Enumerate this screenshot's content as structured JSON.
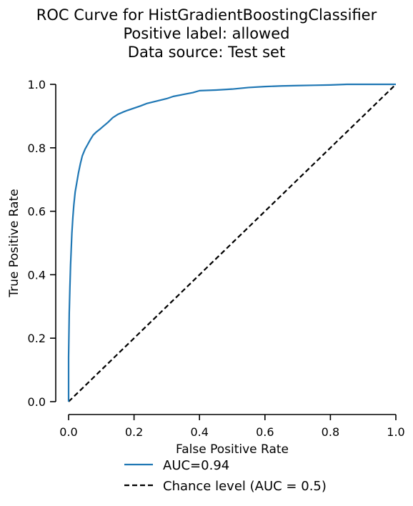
{
  "chart_data": {
    "type": "line",
    "title_lines": [
      "ROC Curve for HistGradientBoostingClassifier",
      "Positive label: allowed",
      "Data source: Test set"
    ],
    "xlabel": "False Positive Rate",
    "ylabel": "True Positive Rate",
    "xlim": [
      0,
      1
    ],
    "ylim": [
      0,
      1
    ],
    "xticks": [
      "0.0",
      "0.2",
      "0.4",
      "0.6",
      "0.8",
      "1.0"
    ],
    "yticks": [
      "0.0",
      "0.2",
      "0.4",
      "0.6",
      "0.8",
      "1.0"
    ],
    "grid": false,
    "legend_position": "bottom-center",
    "series": [
      {
        "name": "AUC=0.94",
        "color": "#1f77b4",
        "style": "solid",
        "x": [
          0.0,
          0.0,
          0.002,
          0.004,
          0.006,
          0.008,
          0.01,
          0.013,
          0.016,
          0.02,
          0.025,
          0.03,
          0.036,
          0.042,
          0.05,
          0.058,
          0.066,
          0.075,
          0.085,
          0.095,
          0.105,
          0.12,
          0.135,
          0.15,
          0.165,
          0.18,
          0.2,
          0.22,
          0.24,
          0.26,
          0.28,
          0.3,
          0.32,
          0.35,
          0.38,
          0.4,
          0.45,
          0.5,
          0.55,
          0.6,
          0.65,
          0.7,
          0.75,
          0.8,
          0.85,
          0.9,
          0.95,
          1.0
        ],
        "y": [
          0.0,
          0.14,
          0.28,
          0.36,
          0.43,
          0.48,
          0.53,
          0.58,
          0.62,
          0.66,
          0.69,
          0.72,
          0.75,
          0.775,
          0.795,
          0.81,
          0.825,
          0.84,
          0.85,
          0.858,
          0.867,
          0.88,
          0.895,
          0.905,
          0.912,
          0.918,
          0.925,
          0.932,
          0.94,
          0.945,
          0.95,
          0.955,
          0.962,
          0.968,
          0.974,
          0.98,
          0.982,
          0.985,
          0.99,
          0.993,
          0.995,
          0.996,
          0.997,
          0.998,
          1.0,
          1.0,
          1.0,
          1.0
        ]
      },
      {
        "name": "Chance level (AUC = 0.5)",
        "color": "#000000",
        "style": "dashed",
        "x": [
          0,
          1
        ],
        "y": [
          0,
          1
        ]
      }
    ]
  }
}
